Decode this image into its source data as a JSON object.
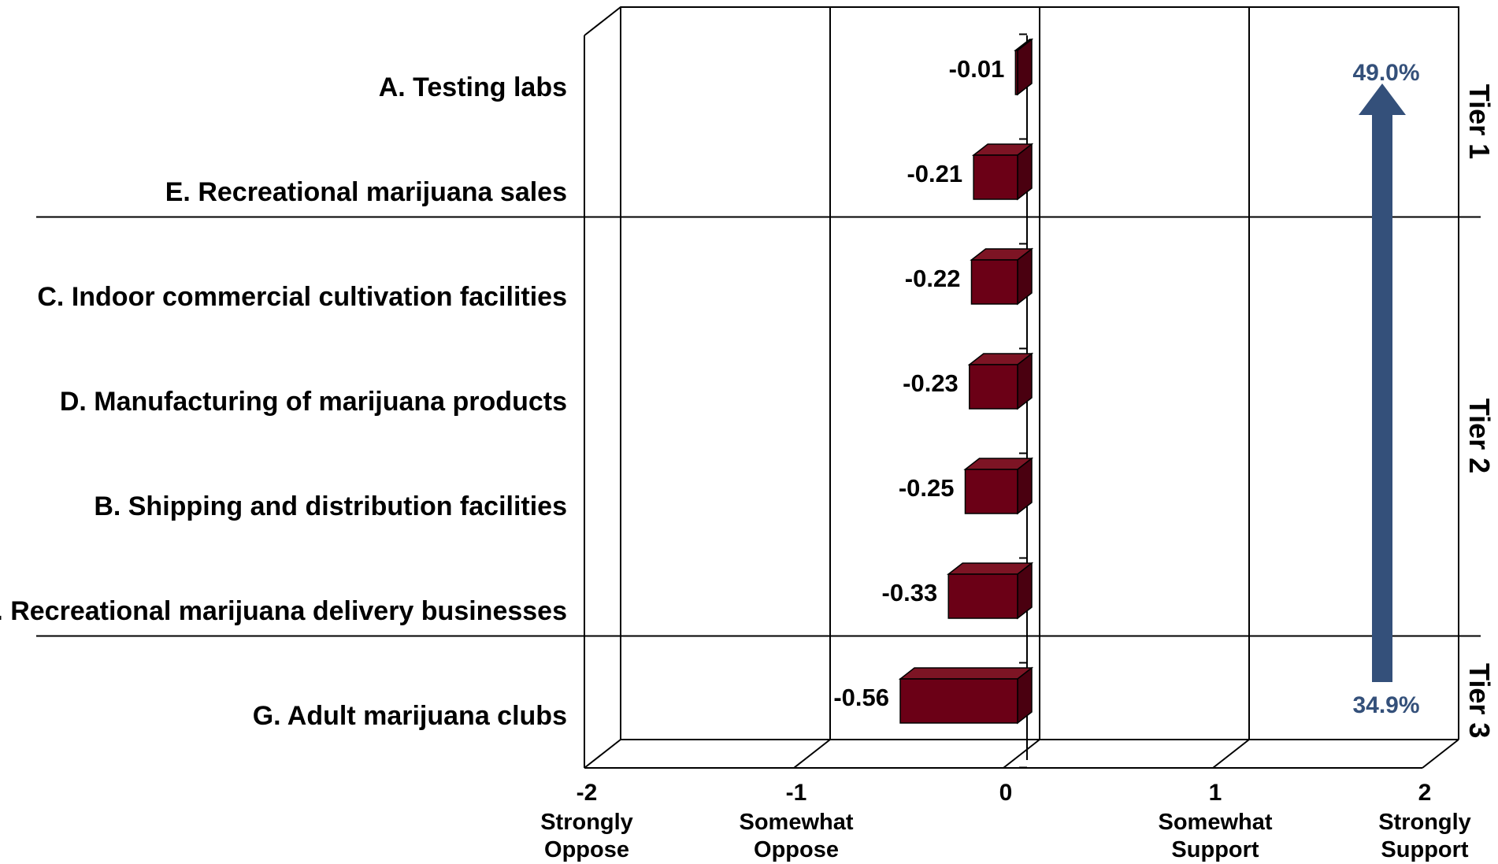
{
  "chart_data": {
    "type": "bar",
    "orientation": "horizontal",
    "style": "3d",
    "categories": [
      "A. Testing labs",
      "E. Recreational marijuana sales",
      "C. Indoor commercial cultivation facilities",
      "D. Manufacturing of marijuana products",
      "B. Shipping and distribution facilities",
      "F. Recreational marijuana delivery businesses",
      "G. Adult marijuana clubs"
    ],
    "values": [
      -0.01,
      -0.21,
      -0.22,
      -0.23,
      -0.25,
      -0.33,
      -0.56
    ],
    "value_labels": [
      "-0.01",
      "-0.21",
      "-0.22",
      "-0.23",
      "-0.25",
      "-0.33",
      "-0.56"
    ],
    "xlim": [
      -2,
      2
    ],
    "x_ticks": [
      {
        "value": -2,
        "label": "-2",
        "sub": [
          "Strongly",
          "Oppose"
        ]
      },
      {
        "value": -1,
        "label": "-1",
        "sub": [
          "Somewhat",
          "Oppose"
        ]
      },
      {
        "value": 0,
        "label": "0",
        "sub": []
      },
      {
        "value": 1,
        "label": "1",
        "sub": [
          "Somewhat",
          "Support"
        ]
      },
      {
        "value": 2,
        "label": "2",
        "sub": [
          "Strongly",
          "Support"
        ]
      }
    ],
    "grid": true,
    "tiers": [
      {
        "label": "Tier 1",
        "rows": [
          0,
          1
        ]
      },
      {
        "label": "Tier 2",
        "rows": [
          2,
          3,
          4,
          5
        ]
      },
      {
        "label": "Tier 3",
        "rows": [
          6
        ]
      }
    ],
    "arrow": {
      "from_label": "34.9%",
      "to_label": "49.0%",
      "direction": "up"
    },
    "colors": {
      "bar_front": "#6b0016",
      "bar_top": "#7d1424",
      "bar_side": "#4a0010",
      "arrow": "#34507a"
    }
  }
}
